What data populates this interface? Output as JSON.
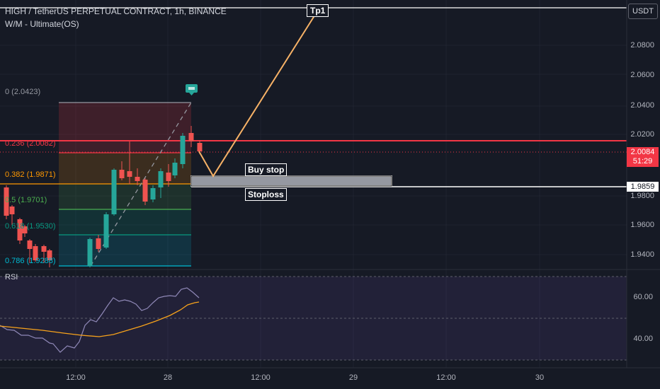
{
  "header": {
    "symbol_line": "HIGH / TetherUS PERPETUAL CONTRACT, 1h, BINANCE",
    "indicator_line": "W/M - Ultimate(OS)"
  },
  "currency_button": "USDT",
  "price_axis": {
    "ticks": [
      "2.0800",
      "2.0600",
      "2.0400",
      "2.0200",
      "1.9800",
      "1.9600",
      "1.9400"
    ],
    "current_price": "2.0084",
    "countdown": "51:29",
    "stoploss_price": "1.9859"
  },
  "fib_levels": [
    {
      "label": "0 (2.0423)",
      "price": 2.0423,
      "color": "#9598a1"
    },
    {
      "label": "0.236 (2.0082)",
      "price": 2.0082,
      "color": "#f23645"
    },
    {
      "label": "0.382 (1.9871)",
      "price": 1.9871,
      "color": "#ff9800"
    },
    {
      "label": "0.5 (1.9701)",
      "price": 1.9701,
      "color": "#4caf50"
    },
    {
      "label": "0.618 (1.9530)",
      "price": 1.953,
      "color": "#089981"
    },
    {
      "label": "0.786 (1.9288)",
      "price": 1.9288,
      "color": "#00bcd4"
    }
  ],
  "annotations": {
    "tp_label": "Tp1",
    "buy_stop_label": "Buy stop",
    "stoploss_label": "Stoploss"
  },
  "rsi": {
    "label": "RSI",
    "ticks": [
      "60.00",
      "40.00"
    ]
  },
  "time_axis": [
    "12:00",
    "28",
    "12:00",
    "29",
    "12:00",
    "30"
  ],
  "colors": {
    "background": "#161a25",
    "up": "#26a69a",
    "down": "#ef5350",
    "resistance": "#f23645",
    "trend": "#f7b267"
  }
}
